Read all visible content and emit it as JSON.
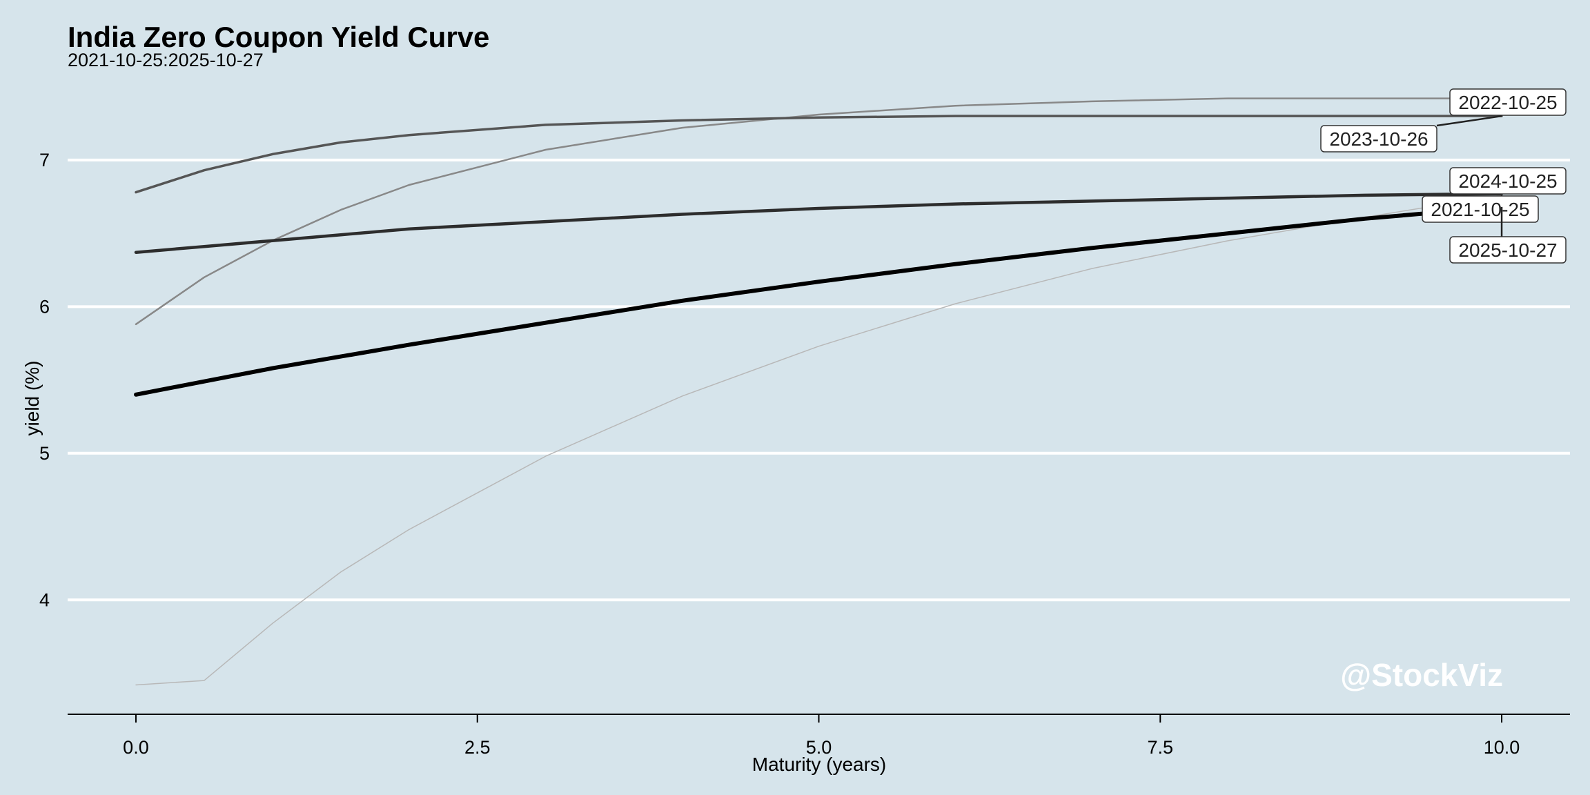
{
  "chart_data": {
    "type": "line",
    "title": "India Zero Coupon Yield Curve",
    "subtitle": "2021-10-25:2025-10-27",
    "xlabel": "Maturity (years)",
    "ylabel": "yield (%)",
    "xlim": [
      -0.5,
      10.5
    ],
    "ylim": [
      3.22,
      7.55
    ],
    "x_ticks": [
      0.0,
      2.5,
      5.0,
      7.5,
      10.0
    ],
    "x_tick_labels": [
      "0.0",
      "2.5",
      "5.0",
      "7.5",
      "10.0"
    ],
    "y_ticks": [
      4,
      5,
      6,
      7
    ],
    "y_tick_labels": [
      "4",
      "5",
      "6",
      "7"
    ],
    "grid": "horizontal",
    "legend": "direct labels at right end of each line",
    "watermark": "@StockViz",
    "series": [
      {
        "name": "2021-10-25",
        "color": "#b8b8b8",
        "stroke_width": 1.5,
        "x": [
          0,
          0.5,
          1,
          1.5,
          2,
          3,
          4,
          5,
          6,
          7,
          8,
          9,
          10
        ],
        "y": [
          3.42,
          3.45,
          3.84,
          4.19,
          4.48,
          4.98,
          5.39,
          5.73,
          6.02,
          6.26,
          6.45,
          6.61,
          6.76
        ]
      },
      {
        "name": "2022-10-25",
        "color": "#888888",
        "stroke_width": 2.5,
        "x": [
          0,
          0.5,
          1,
          1.5,
          2,
          3,
          4,
          5,
          6,
          7,
          8,
          9,
          10
        ],
        "y": [
          5.88,
          6.2,
          6.45,
          6.66,
          6.83,
          7.07,
          7.22,
          7.31,
          7.37,
          7.4,
          7.42,
          7.42,
          7.42
        ]
      },
      {
        "name": "2023-10-26",
        "color": "#555555",
        "stroke_width": 3.5,
        "x": [
          0,
          0.5,
          1,
          1.5,
          2,
          3,
          4,
          5,
          6,
          7,
          8,
          9,
          10
        ],
        "y": [
          6.78,
          6.93,
          7.04,
          7.12,
          7.17,
          7.24,
          7.27,
          7.29,
          7.3,
          7.3,
          7.3,
          7.3,
          7.3
        ]
      },
      {
        "name": "2024-10-25",
        "color": "#2d2d2d",
        "stroke_width": 4.5,
        "x": [
          0,
          0.5,
          1,
          1.5,
          2,
          3,
          4,
          5,
          6,
          7,
          8,
          9,
          10
        ],
        "y": [
          6.37,
          6.41,
          6.45,
          6.49,
          6.53,
          6.58,
          6.63,
          6.67,
          6.7,
          6.72,
          6.74,
          6.76,
          6.77
        ]
      },
      {
        "name": "2025-10-27",
        "color": "#000000",
        "stroke_width": 6,
        "x": [
          0,
          0.5,
          1,
          1.5,
          2,
          3,
          4,
          5,
          6,
          7,
          8,
          9,
          10
        ],
        "y": [
          5.4,
          5.49,
          5.58,
          5.66,
          5.74,
          5.89,
          6.04,
          6.17,
          6.29,
          6.4,
          6.5,
          6.6,
          6.68
        ]
      }
    ]
  }
}
